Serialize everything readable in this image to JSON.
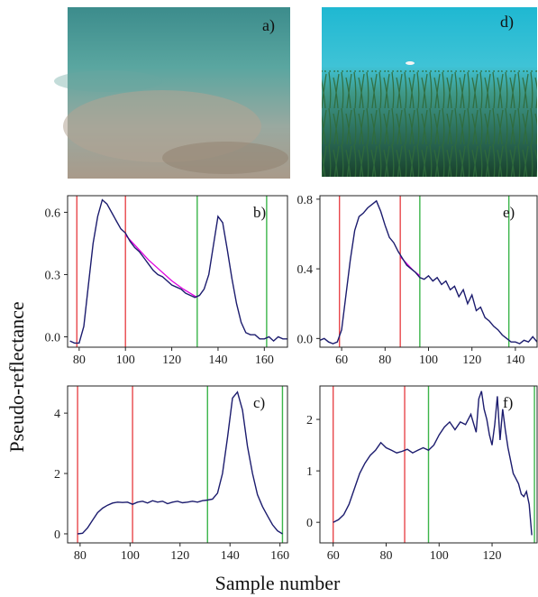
{
  "figure": {
    "ylabel": "Pseudo-reflectance",
    "xlabel": "Sample number"
  },
  "photos": [
    {
      "label": "a)",
      "scene": "sandy-seabed"
    },
    {
      "label": "d)",
      "scene": "seagrass-meadow"
    }
  ],
  "colors": {
    "signal": "#1c1c6e",
    "fit": "#e000e0",
    "red_line": "#e8474b",
    "green_line": "#3bb54a"
  },
  "chart_data": [
    {
      "type": "line",
      "panel": "b)",
      "xlim": [
        75,
        170
      ],
      "ylim": [
        -0.05,
        0.68
      ],
      "xticks": [
        80,
        100,
        120,
        140,
        160
      ],
      "yticks": [
        0.0,
        0.3,
        0.6
      ],
      "ytick_labels": [
        "0.0",
        "0.3",
        "0.6"
      ],
      "red_lines": [
        79,
        100
      ],
      "green_lines": [
        131,
        161
      ],
      "series": [
        {
          "x": [
            76,
            78,
            80,
            82,
            84,
            86,
            88,
            90,
            92,
            94,
            96,
            98,
            100,
            102,
            104,
            106,
            108,
            110,
            112,
            114,
            116,
            118,
            120,
            122,
            124,
            126,
            128,
            130,
            132,
            134,
            136,
            138,
            140,
            142,
            144,
            146,
            148,
            150,
            152,
            154,
            156,
            158,
            160,
            162,
            164,
            166,
            168,
            170
          ],
          "y": [
            -0.02,
            -0.03,
            -0.03,
            0.05,
            0.25,
            0.45,
            0.58,
            0.66,
            0.64,
            0.6,
            0.56,
            0.52,
            0.5,
            0.46,
            0.43,
            0.41,
            0.38,
            0.35,
            0.32,
            0.3,
            0.29,
            0.27,
            0.25,
            0.24,
            0.23,
            0.21,
            0.2,
            0.19,
            0.2,
            0.23,
            0.3,
            0.44,
            0.58,
            0.55,
            0.42,
            0.28,
            0.16,
            0.07,
            0.02,
            0.01,
            0.01,
            -0.01,
            -0.01,
            0.0,
            -0.02,
            0.0,
            -0.01,
            -0.01
          ]
        }
      ],
      "fit": {
        "x": [
          100,
          105,
          110,
          115,
          120,
          125,
          131
        ],
        "y": [
          0.49,
          0.43,
          0.37,
          0.32,
          0.27,
          0.23,
          0.19
        ]
      }
    },
    {
      "type": "line",
      "panel": "e)",
      "xlim": [
        50,
        150
      ],
      "ylim": [
        -0.05,
        0.82
      ],
      "xticks": [
        60,
        80,
        100,
        120,
        140
      ],
      "yticks": [
        0.0,
        0.4,
        0.8
      ],
      "ytick_labels": [
        "0.0",
        "0.4",
        "0.8"
      ],
      "red_lines": [
        59,
        87
      ],
      "green_lines": [
        96,
        137
      ],
      "series": [
        {
          "x": [
            50,
            52,
            54,
            56,
            58,
            60,
            62,
            64,
            66,
            68,
            70,
            72,
            74,
            76,
            78,
            80,
            82,
            84,
            86,
            88,
            90,
            92,
            94,
            96,
            98,
            100,
            102,
            104,
            106,
            108,
            110,
            112,
            114,
            116,
            118,
            120,
            122,
            124,
            126,
            128,
            130,
            132,
            134,
            136,
            138,
            140,
            142,
            144,
            146,
            148,
            150
          ],
          "y": [
            -0.01,
            0.0,
            -0.02,
            -0.03,
            -0.02,
            0.05,
            0.25,
            0.45,
            0.62,
            0.7,
            0.72,
            0.75,
            0.77,
            0.79,
            0.73,
            0.65,
            0.58,
            0.55,
            0.5,
            0.46,
            0.42,
            0.4,
            0.38,
            0.35,
            0.34,
            0.36,
            0.33,
            0.35,
            0.31,
            0.33,
            0.28,
            0.3,
            0.24,
            0.28,
            0.2,
            0.25,
            0.16,
            0.18,
            0.12,
            0.1,
            0.07,
            0.05,
            0.02,
            0.0,
            -0.02,
            -0.02,
            -0.03,
            -0.01,
            -0.02,
            0.01,
            -0.02
          ]
        }
      ],
      "fit": {
        "x": [
          87,
          90,
          93,
          96
        ],
        "y": [
          0.47,
          0.43,
          0.39,
          0.36
        ]
      }
    },
    {
      "type": "line",
      "panel": "c)",
      "xlim": [
        75,
        163
      ],
      "ylim": [
        -0.3,
        4.9
      ],
      "xticks": [
        80,
        100,
        120,
        140,
        160
      ],
      "yticks": [
        0,
        2,
        4
      ],
      "ytick_labels": [
        "0",
        "2",
        "4"
      ],
      "red_lines": [
        79,
        101
      ],
      "green_lines": [
        131,
        161
      ],
      "series": [
        {
          "x": [
            79,
            81,
            83,
            85,
            87,
            89,
            91,
            93,
            95,
            97,
            99,
            101,
            103,
            105,
            107,
            109,
            111,
            113,
            115,
            117,
            119,
            121,
            123,
            125,
            127,
            129,
            131,
            133,
            135,
            137,
            139,
            141,
            143,
            145,
            147,
            149,
            151,
            153,
            155,
            157,
            159,
            161
          ],
          "y": [
            0.0,
            0.02,
            0.2,
            0.45,
            0.7,
            0.85,
            0.95,
            1.02,
            1.05,
            1.04,
            1.05,
            0.98,
            1.05,
            1.08,
            1.02,
            1.1,
            1.05,
            1.08,
            1.0,
            1.05,
            1.08,
            1.03,
            1.05,
            1.08,
            1.05,
            1.1,
            1.12,
            1.15,
            1.35,
            2.0,
            3.2,
            4.5,
            4.7,
            4.1,
            2.9,
            2.0,
            1.3,
            0.9,
            0.6,
            0.3,
            0.1,
            0.0
          ]
        }
      ]
    },
    {
      "type": "line",
      "panel": "f)",
      "xlim": [
        55,
        137
      ],
      "ylim": [
        -0.4,
        2.65
      ],
      "xticks": [
        60,
        80,
        100,
        120
      ],
      "yticks": [
        0,
        1,
        2
      ],
      "ytick_labels": [
        "0",
        "1",
        "2"
      ],
      "red_lines": [
        60,
        87
      ],
      "green_lines": [
        96,
        136
      ],
      "series": [
        {
          "x": [
            60,
            62,
            64,
            66,
            68,
            70,
            72,
            74,
            76,
            78,
            80,
            82,
            84,
            86,
            88,
            90,
            92,
            94,
            96,
            98,
            100,
            102,
            104,
            106,
            108,
            110,
            112,
            114,
            115,
            116,
            117,
            118,
            119,
            120,
            121,
            122,
            123,
            124,
            125,
            126,
            127,
            128,
            129,
            130,
            131,
            132,
            133,
            134,
            135
          ],
          "y": [
            0.0,
            0.05,
            0.15,
            0.35,
            0.65,
            0.95,
            1.15,
            1.3,
            1.4,
            1.55,
            1.45,
            1.4,
            1.35,
            1.38,
            1.42,
            1.35,
            1.4,
            1.45,
            1.4,
            1.5,
            1.7,
            1.85,
            1.95,
            1.8,
            1.95,
            1.9,
            2.1,
            1.75,
            2.4,
            2.55,
            2.2,
            2.0,
            1.7,
            1.5,
            1.9,
            2.45,
            1.6,
            2.2,
            1.8,
            1.45,
            1.2,
            0.95,
            0.85,
            0.75,
            0.55,
            0.5,
            0.6,
            0.35,
            -0.25
          ]
        }
      ]
    }
  ]
}
